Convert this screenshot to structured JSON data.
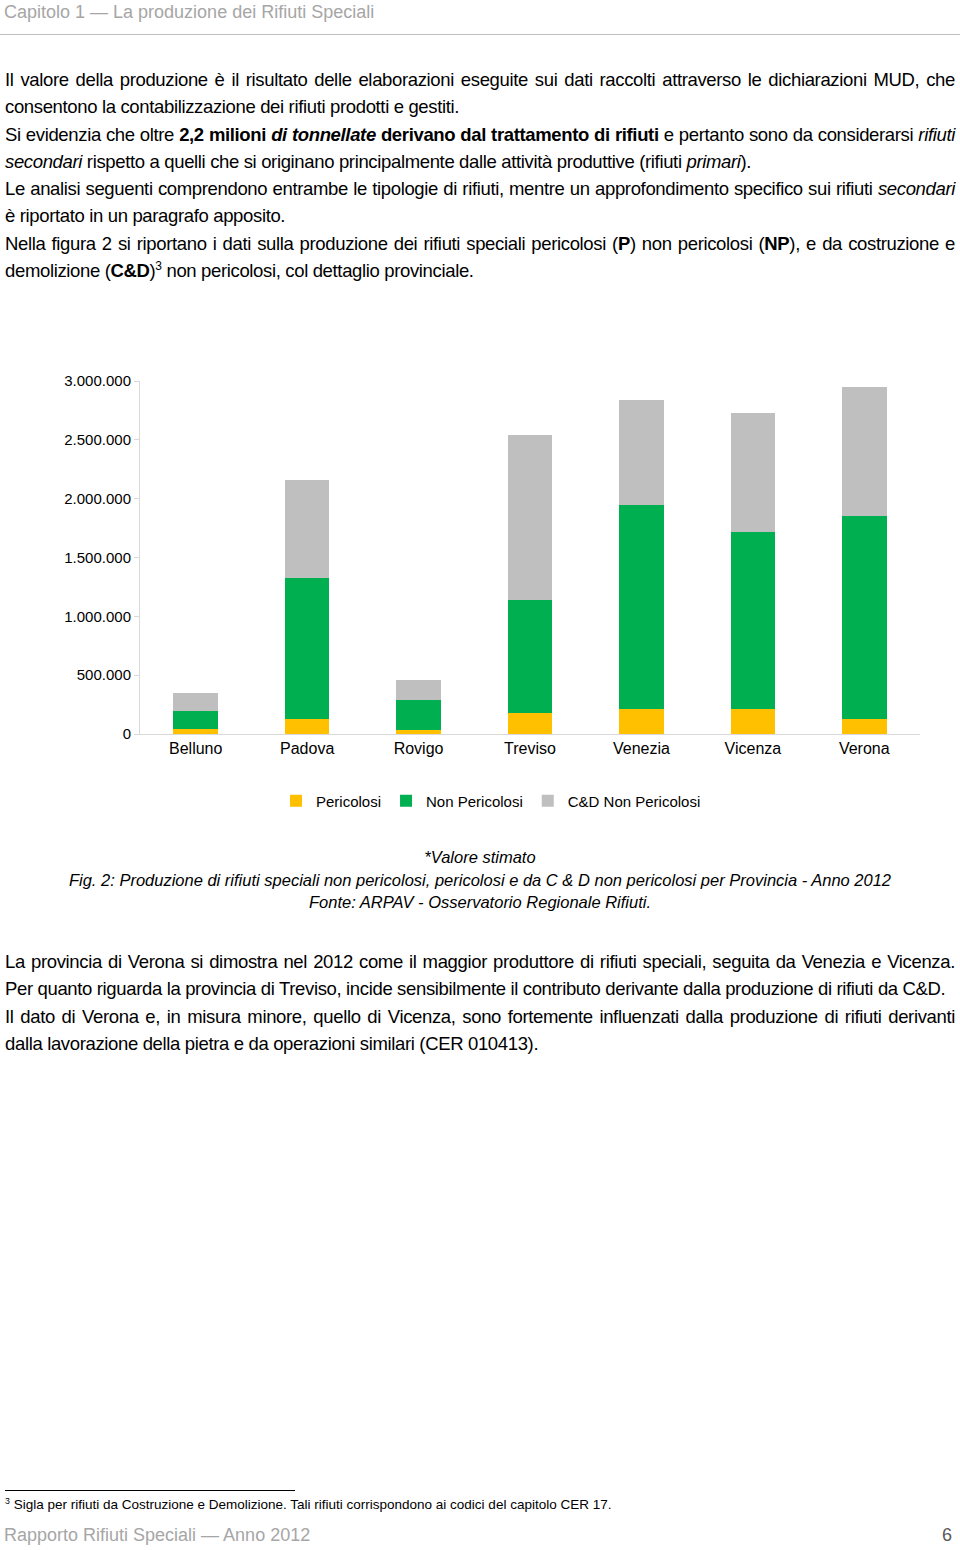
{
  "header": {
    "text": "Capitolo 1 — La produzione dei Rifiuti Speciali"
  },
  "body_before": [
    [
      {
        "text": "Il valore della produzione è il risultato delle elaborazioni eseguite sui dati raccolti attraverso le dichiarazioni MUD, che consentono la contabilizzazione dei rifiuti prodotti e gestiti."
      }
    ],
    [
      {
        "text": "Si evidenzia che oltre "
      },
      {
        "text": "2,2 milioni ",
        "bold": true
      },
      {
        "text": "di tonnellate",
        "bold": true,
        "italic": true
      },
      {
        "text": " derivano dal trattamento di rifiuti",
        "bold": true
      },
      {
        "text": " e pertanto sono da considerarsi "
      },
      {
        "text": "rifiuti secondari",
        "italic": true
      },
      {
        "text": " rispetto a quelli che si originano principalmente dalle attività produttive (rifiuti "
      },
      {
        "text": "primari",
        "italic": true
      },
      {
        "text": ")."
      }
    ],
    [
      {
        "text": "Le analisi seguenti comprendono entrambe le tipologie di rifiuti, mentre un approfondimento specifico sui rifiuti "
      },
      {
        "text": "secondari",
        "italic": true
      },
      {
        "text": " è riportato in un paragrafo apposito."
      }
    ],
    [
      {
        "text": "Nella figura 2 si riportano i dati sulla produzione dei rifiuti speciali pericolosi ("
      },
      {
        "text": "P",
        "bold": true
      },
      {
        "text": ") non pericolosi ("
      },
      {
        "text": "NP",
        "bold": true
      },
      {
        "text": "), e da costruzione e demolizione ("
      },
      {
        "text": "C&D",
        "bold": true
      },
      {
        "text": ")"
      },
      {
        "text": "3",
        "sup": true
      },
      {
        "text": " non pericolosi, col dettaglio provinciale."
      }
    ]
  ],
  "chart_data": {
    "type": "bar",
    "stacked": true,
    "categories": [
      "Belluno",
      "Padova",
      "Rovigo",
      "Treviso",
      "Venezia",
      "Vicenza",
      "Verona"
    ],
    "series": [
      {
        "name": "Pericolosi",
        "color": "#ffc000",
        "values": [
          40000,
          130000,
          30000,
          180000,
          215000,
          215000,
          130000
        ]
      },
      {
        "name": "Non Pericolosi",
        "color": "#00b050",
        "values": [
          155000,
          1200000,
          258000,
          960000,
          1730000,
          1500000,
          1725000
        ]
      },
      {
        "name": "C&D Non Pericolosi",
        "color": "#bfbfbf",
        "values": [
          150000,
          830000,
          172000,
          1400000,
          895000,
          1010000,
          1095000
        ]
      }
    ],
    "ylim": [
      0,
      3000000
    ],
    "yticks": [
      0,
      {
        "value": 500000,
        "label": "500.000"
      },
      {
        "value": 1000000,
        "label": "1.000.000"
      },
      {
        "value": 1500000,
        "label": "1.500.000"
      },
      {
        "value": 2000000,
        "label": "2.000.000"
      },
      {
        "value": 2500000,
        "label": "2.500.000"
      },
      {
        "value": 3000000,
        "label": "3.000.000"
      }
    ],
    "grid": false,
    "legend": "bottom"
  },
  "captions": [
    [
      {
        "text": "*Valore stimato",
        "italic": true
      }
    ],
    [
      {
        "text": "Fig. 2: Produzione di rifiuti speciali non pericolosi, pericolosi e da C & D non pericolosi per Provincia - Anno 2012",
        "italic": true
      }
    ],
    [
      {
        "text": "Fonte: ARPAV - Osservatorio Regionale Rifiuti.",
        "italic": true
      }
    ]
  ],
  "body_after": [
    [
      {
        "text": "La provincia di Verona si dimostra nel 2012 come il maggior produttore di rifiuti speciali, seguita da Venezia e Vicenza. Per quanto riguarda la provincia di Treviso, incide sensibilmente il contributo derivante dalla produzione di rifiuti da C&D."
      }
    ],
    [
      {
        "text": "Il dato di Verona e, in misura minore, quello di Vicenza, sono fortemente influenzati dalla produzione di rifiuti derivanti dalla lavorazione della pietra e da operazioni similari (CER 010413)."
      }
    ]
  ],
  "footnote": [
    {
      "text": "3",
      "sup": true
    },
    {
      "text": " Sigla per rifiuti da Costruzione e Demolizione. Tali rifiuti corrispondono ai codici del capitolo CER 17."
    }
  ],
  "footer": {
    "left": "Rapporto Rifiuti Speciali — Anno 2012",
    "right": "6"
  }
}
